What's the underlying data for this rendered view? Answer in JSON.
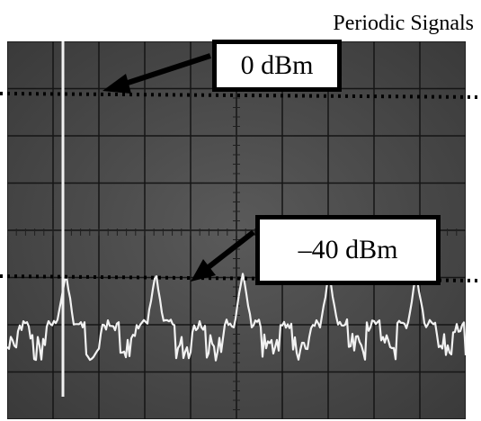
{
  "title": "Periodic Signals",
  "markers": {
    "top": {
      "label": "0 dBm"
    },
    "bottom": {
      "label": "–40 dBm"
    }
  },
  "colors": {
    "screen_bg": "#4a4a4a",
    "trace": "#f2f2f2",
    "grid": "#151515",
    "reference_line": "#000000"
  }
}
